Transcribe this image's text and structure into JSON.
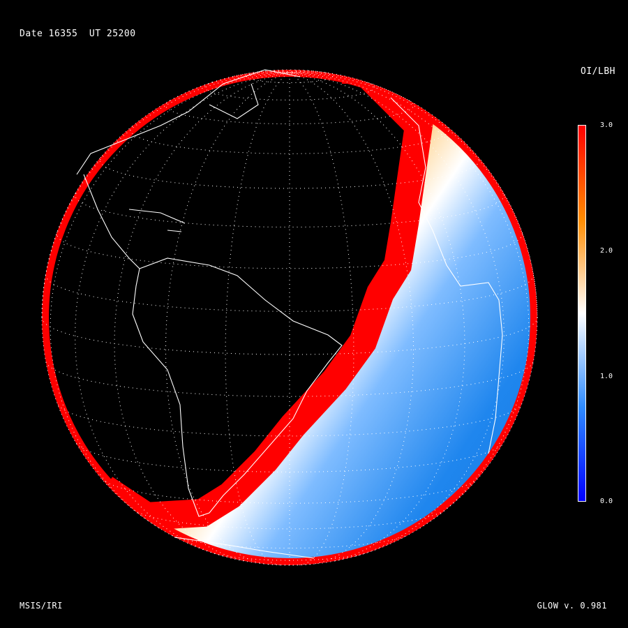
{
  "header": {
    "date_label": "Date 16355  UT 25200"
  },
  "colorbar": {
    "title": "OI/LBH",
    "ticks": [
      "3.0",
      "2.0",
      "1.0",
      "0.0"
    ],
    "range": [
      0.0,
      3.0
    ],
    "stops": [
      "#0000ff",
      "#2f8cff",
      "#ffffff",
      "#ff8c00",
      "#ff0000"
    ]
  },
  "footer": {
    "left": "MSIS/IRI",
    "right": "GLOW v. 0.981"
  },
  "map": {
    "projection": "orthographic",
    "globe_bg": "#000000",
    "grid_color": "#ffffff",
    "coast_color": "#ffffff"
  }
}
